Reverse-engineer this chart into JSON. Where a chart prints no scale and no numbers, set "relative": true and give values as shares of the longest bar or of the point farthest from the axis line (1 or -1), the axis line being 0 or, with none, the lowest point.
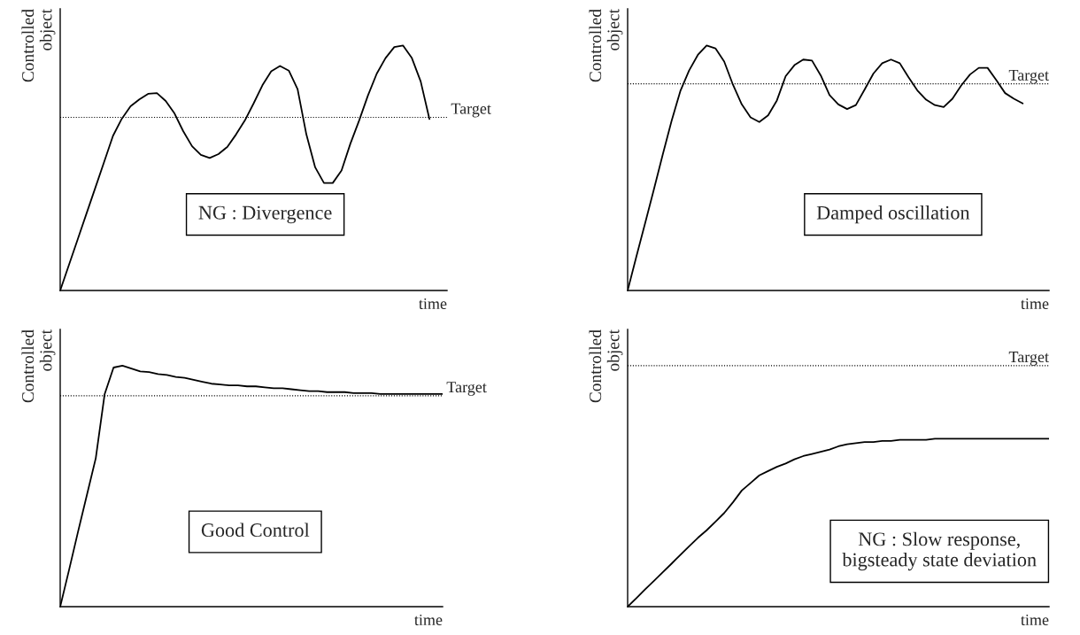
{
  "chart_data": [
    {
      "type": "line",
      "relative": true,
      "ylabel": "Controlled\nobject",
      "xlabel": "time",
      "annotations": [
        "NG : Divergence"
      ],
      "categories": [
        null,
        null,
        null,
        null,
        null,
        null,
        null,
        null,
        null,
        null,
        null,
        null,
        null,
        null,
        null,
        null,
        null,
        null,
        null,
        null,
        null,
        null,
        null,
        null,
        null,
        null,
        null,
        null,
        null,
        null,
        null,
        null,
        null,
        null,
        null,
        null,
        null,
        null,
        null,
        null,
        null,
        null,
        null,
        null,
        null
      ],
      "series": [
        {
          "color": "#000000",
          "values": [
            0,
            0.105,
            0.21,
            0.315,
            0.42,
            0.525,
            0.631,
            0.701,
            0.752,
            0.78,
            0.803,
            0.806,
            0.774,
            0.723,
            0.65,
            0.589,
            0.554,
            0.541,
            0.557,
            0.586,
            0.637,
            0.694,
            0.764,
            0.838,
            0.895,
            0.917,
            0.898,
            0.822,
            0.637,
            0.503,
            0.439,
            0.439,
            0.49,
            0.599,
            0.694,
            0.796,
            0.885,
            0.949,
            0.994,
            1,
            0.949,
            0.854,
            0.7,
            null,
            null
          ]
        }
      ],
      "ref_lines": [
        {
          "axis": "y",
          "value": 0.707,
          "label": "Target",
          "color": "#000000",
          "line_style": "dotted"
        }
      ],
      "marker": "none",
      "line_style": "solid"
    },
    {
      "type": "line",
      "relative": true,
      "ylabel": "Controlled\nobject",
      "xlabel": "time",
      "annotations": [
        "Damped oscillation"
      ],
      "categories": [
        null,
        null,
        null,
        null,
        null,
        null,
        null,
        null,
        null,
        null,
        null,
        null,
        null,
        null,
        null,
        null,
        null,
        null,
        null,
        null,
        null,
        null,
        null,
        null,
        null,
        null,
        null,
        null,
        null,
        null,
        null,
        null,
        null,
        null,
        null,
        null,
        null,
        null,
        null,
        null,
        null,
        null,
        null,
        null,
        null,
        null,
        null,
        null,
        null
      ],
      "series": [
        {
          "color": "#000000",
          "values": [
            0,
            0.139,
            0.276,
            0.414,
            0.555,
            0.692,
            0.814,
            0.898,
            0.962,
            1,
            0.989,
            0.935,
            0.84,
            0.76,
            0.707,
            0.688,
            0.715,
            0.776,
            0.875,
            0.92,
            0.943,
            0.939,
            0.878,
            0.798,
            0.76,
            0.741,
            0.757,
            0.821,
            0.886,
            0.928,
            0.943,
            0.928,
            0.871,
            0.817,
            0.779,
            0.757,
            0.749,
            0.783,
            0.837,
            0.882,
            0.909,
            0.909,
            0.859,
            0.806,
            0.783,
            0.764,
            null,
            null,
            null
          ]
        }
      ],
      "ref_lines": [
        {
          "axis": "y",
          "value": 0.844,
          "label": "Target",
          "color": "#000000",
          "line_style": "dotted"
        }
      ],
      "marker": "none",
      "line_style": "solid"
    },
    {
      "type": "line",
      "relative": true,
      "ylabel": "Controlled\nobject",
      "xlabel": "time",
      "annotations": [
        "Good Control"
      ],
      "categories": [
        null,
        null,
        null,
        null,
        null,
        null,
        null,
        null,
        null,
        null,
        null,
        null,
        null,
        null,
        null,
        null,
        null,
        null,
        null,
        null,
        null,
        null,
        null,
        null,
        null,
        null,
        null,
        null,
        null,
        null,
        null,
        null,
        null,
        null,
        null,
        null,
        null,
        null,
        null,
        null,
        null,
        null,
        null,
        null
      ],
      "series": [
        {
          "color": "#000000",
          "values": [
            0,
            0.153,
            0.31,
            0.463,
            0.616,
            0.882,
            0.992,
            1,
            0.988,
            0.976,
            0.973,
            0.965,
            0.961,
            0.953,
            0.949,
            0.941,
            0.933,
            0.925,
            0.922,
            0.918,
            0.918,
            0.914,
            0.914,
            0.91,
            0.906,
            0.906,
            0.902,
            0.898,
            0.894,
            0.894,
            0.89,
            0.89,
            0.89,
            0.886,
            0.886,
            0.886,
            0.882,
            0.882,
            0.882,
            0.882,
            0.882,
            0.882,
            0.882,
            0.882
          ]
        }
      ],
      "ref_lines": [
        {
          "axis": "y",
          "value": 0.875,
          "label": "Target",
          "color": "#000000",
          "line_style": "dotted"
        }
      ],
      "marker": "none",
      "line_style": "solid"
    },
    {
      "type": "line",
      "relative": true,
      "ylabel": "Controlled\nobject",
      "xlabel": "time",
      "annotations": [
        "NG : Slow response,\nbigsteady state deviation"
      ],
      "categories": [
        null,
        null,
        null,
        null,
        null,
        null,
        null,
        null,
        null,
        null,
        null,
        null,
        null,
        null,
        null,
        null,
        null,
        null,
        null,
        null,
        null,
        null,
        null,
        null,
        null,
        null,
        null,
        null,
        null,
        null,
        null,
        null,
        null,
        null,
        null,
        null,
        null,
        null,
        null,
        null,
        null,
        null,
        null,
        null,
        null,
        null,
        null,
        null,
        null
      ],
      "series": [
        {
          "color": "#000000",
          "values": [
            0,
            0.051,
            0.103,
            0.154,
            0.205,
            0.256,
            0.308,
            0.359,
            0.41,
            0.455,
            0.506,
            0.558,
            0.622,
            0.692,
            0.737,
            0.782,
            0.808,
            0.833,
            0.853,
            0.878,
            0.897,
            0.91,
            0.923,
            0.936,
            0.955,
            0.968,
            0.974,
            0.981,
            0.981,
            0.987,
            0.987,
            0.994,
            0.994,
            0.994,
            0.994,
            1,
            1,
            1,
            1,
            1,
            1,
            1,
            1,
            1,
            1,
            1,
            1,
            1,
            1
          ]
        }
      ],
      "ref_lines": [
        {
          "axis": "y",
          "value": 1.436,
          "label": "Target",
          "color": "#000000",
          "line_style": "dotted"
        }
      ],
      "marker": "none",
      "line_style": "solid"
    }
  ]
}
